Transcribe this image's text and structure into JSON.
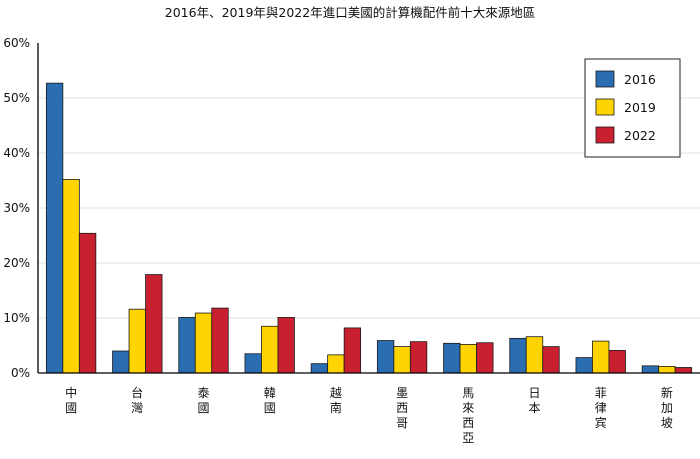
{
  "chart_data": {
    "type": "bar",
    "title": "2016年、2019年與2022年進口美國的計算機配件前十大來源地區",
    "categories": [
      "中國",
      "台灣",
      "泰國",
      "韓國",
      "越南",
      "墨西哥",
      "馬來西亞",
      "日本",
      "菲律宾",
      "新加坡"
    ],
    "series": [
      {
        "name": "2016",
        "color": "#2a6db0",
        "values": [
          52.7,
          4.0,
          10.1,
          3.5,
          1.7,
          5.9,
          5.4,
          6.3,
          2.8,
          1.3
        ]
      },
      {
        "name": "2019",
        "color": "#ffd400",
        "values": [
          35.2,
          11.6,
          10.9,
          8.5,
          3.3,
          4.8,
          5.2,
          6.6,
          5.8,
          1.2
        ]
      },
      {
        "name": "2022",
        "color": "#c8202f",
        "values": [
          25.4,
          17.9,
          11.8,
          10.1,
          8.2,
          5.7,
          5.5,
          4.8,
          4.1,
          1.0
        ]
      }
    ],
    "ylim": [
      0,
      60
    ],
    "yticks": [
      "0%",
      "10%",
      "20%",
      "30%",
      "40%",
      "50%",
      "60%"
    ],
    "grid": "horizontal",
    "legend": "top-right"
  }
}
